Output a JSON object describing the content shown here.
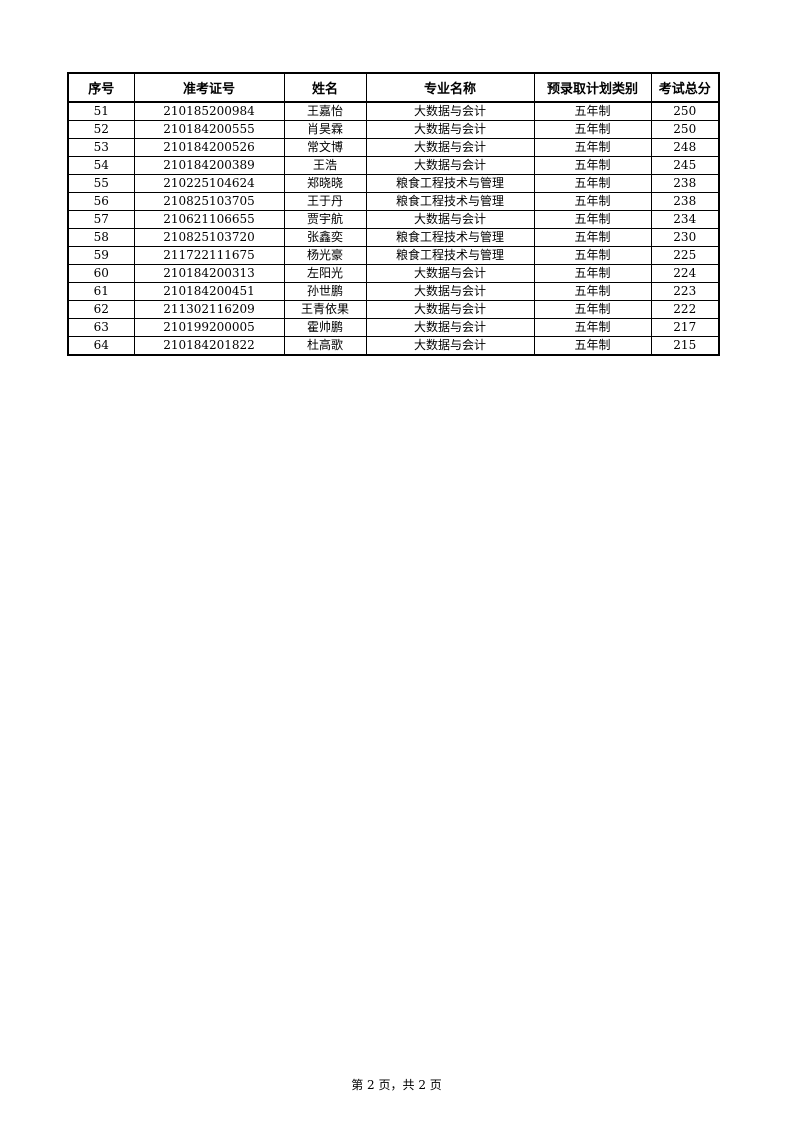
{
  "table": {
    "headers": [
      "序号",
      "准考证号",
      "姓名",
      "专业名称",
      "预录取计划类别",
      "考试总分"
    ],
    "rows": [
      [
        "51",
        "210185200984",
        "王嘉怡",
        "大数据与会计",
        "五年制",
        "250"
      ],
      [
        "52",
        "210184200555",
        "肖昊霖",
        "大数据与会计",
        "五年制",
        "250"
      ],
      [
        "53",
        "210184200526",
        "常文博",
        "大数据与会计",
        "五年制",
        "248"
      ],
      [
        "54",
        "210184200389",
        "王浩",
        "大数据与会计",
        "五年制",
        "245"
      ],
      [
        "55",
        "210225104624",
        "郑晓晓",
        "粮食工程技术与管理",
        "五年制",
        "238"
      ],
      [
        "56",
        "210825103705",
        "王于丹",
        "粮食工程技术与管理",
        "五年制",
        "238"
      ],
      [
        "57",
        "210621106655",
        "贾宇航",
        "大数据与会计",
        "五年制",
        "234"
      ],
      [
        "58",
        "210825103720",
        "张鑫奕",
        "粮食工程技术与管理",
        "五年制",
        "230"
      ],
      [
        "59",
        "211722111675",
        "杨光豪",
        "粮食工程技术与管理",
        "五年制",
        "225"
      ],
      [
        "60",
        "210184200313",
        "左阳光",
        "大数据与会计",
        "五年制",
        "224"
      ],
      [
        "61",
        "210184200451",
        "孙世鹏",
        "大数据与会计",
        "五年制",
        "223"
      ],
      [
        "62",
        "211302116209",
        "王青依果",
        "大数据与会计",
        "五年制",
        "222"
      ],
      [
        "63",
        "210199200005",
        "霍帅鹏",
        "大数据与会计",
        "五年制",
        "217"
      ],
      [
        "64",
        "210184201822",
        "杜高歌",
        "大数据与会计",
        "五年制",
        "215"
      ]
    ]
  },
  "footer": {
    "page_label": "第 2 页，共 2 页"
  }
}
